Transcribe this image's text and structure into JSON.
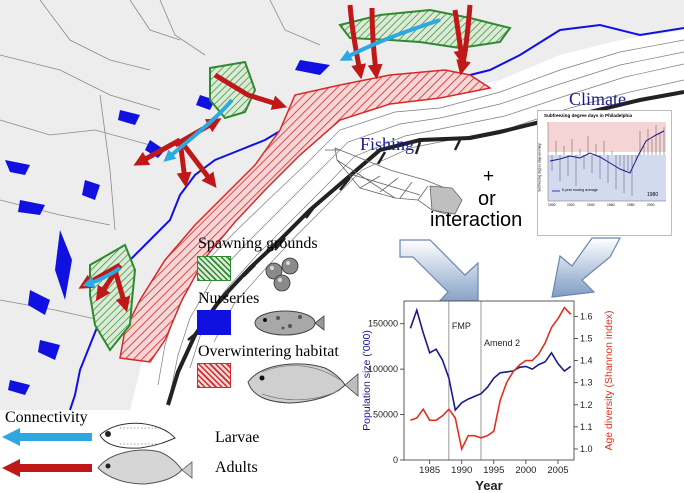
{
  "legend": {
    "spawning": "Spawning grounds",
    "nurseries": "Nurseries",
    "overwintering": "Overwintering habitat",
    "connectivity": "Connectivity",
    "larvae": "Larvae",
    "adults": "Adults"
  },
  "labels": {
    "fishing": "Fishing",
    "plus": "+",
    "or": "or",
    "interaction": "interaction",
    "climate": "Climate"
  },
  "climate_inset": {
    "title": "Subfreezing degree days in Philadelphia",
    "legend": "5-year moving average",
    "marker": "1980",
    "ylabel": "Subfreezing degree days anomaly",
    "x_ticks": [
      "1900",
      "1920",
      "1940",
      "1960",
      "1980",
      "2000"
    ]
  },
  "colors": {
    "spawning": "#2f8a2f",
    "nurseries": "#1010e0",
    "overwintering": "#d42a2a",
    "larvae_arrow": "#2ea8e0",
    "adults_arrow": "#c01818",
    "population_line": "#1a1a8c",
    "age_line": "#e03020"
  },
  "chart_data": {
    "type": "line",
    "xlabel": "Year",
    "ylabel": "Population size ('000)",
    "y2label": "Age diversity (Shannon index)",
    "xlim": [
      1981,
      2007.5
    ],
    "ylim": [
      0,
      175000
    ],
    "y2lim": [
      0.95,
      1.67
    ],
    "x_ticks": [
      1985,
      1990,
      1995,
      2000,
      2005
    ],
    "y_ticks": [
      0,
      50000,
      100000,
      150000
    ],
    "y2_ticks": [
      1.0,
      1.1,
      1.2,
      1.3,
      1.4,
      1.5,
      1.6
    ],
    "annotations": [
      {
        "label": "FMP",
        "x": 1988
      },
      {
        "label": "Amend 2",
        "x": 1993
      }
    ],
    "series": [
      {
        "axis": "left",
        "x": [
          1982,
          1983,
          1984,
          1985,
          1986,
          1987,
          1988,
          1989,
          1990,
          1991,
          1992,
          1993,
          1994,
          1995,
          1996,
          1997,
          1998,
          1999,
          2000,
          2001,
          2002,
          2003,
          2004,
          2005,
          2006,
          2007
        ],
        "values": [
          145000,
          165000,
          140000,
          118000,
          122000,
          110000,
          90000,
          55000,
          63000,
          67000,
          70000,
          73000,
          80000,
          90000,
          96000,
          97000,
          98000,
          102000,
          103000,
          100000,
          105000,
          108000,
          118000,
          106000,
          98000,
          103000
        ]
      },
      {
        "axis": "right",
        "x": [
          1982,
          1983,
          1984,
          1985,
          1986,
          1987,
          1988,
          1989,
          1990,
          1991,
          1992,
          1993,
          1994,
          1995,
          1996,
          1997,
          1998,
          1999,
          2000,
          2001,
          2002,
          2003,
          2004,
          2005,
          2006,
          2007
        ],
        "values": [
          1.13,
          1.14,
          1.18,
          1.13,
          1.13,
          1.15,
          1.18,
          1.14,
          1.0,
          1.06,
          1.06,
          1.05,
          1.06,
          1.08,
          1.22,
          1.3,
          1.35,
          1.38,
          1.4,
          1.4,
          1.43,
          1.48,
          1.55,
          1.59,
          1.64,
          1.61
        ]
      }
    ]
  }
}
